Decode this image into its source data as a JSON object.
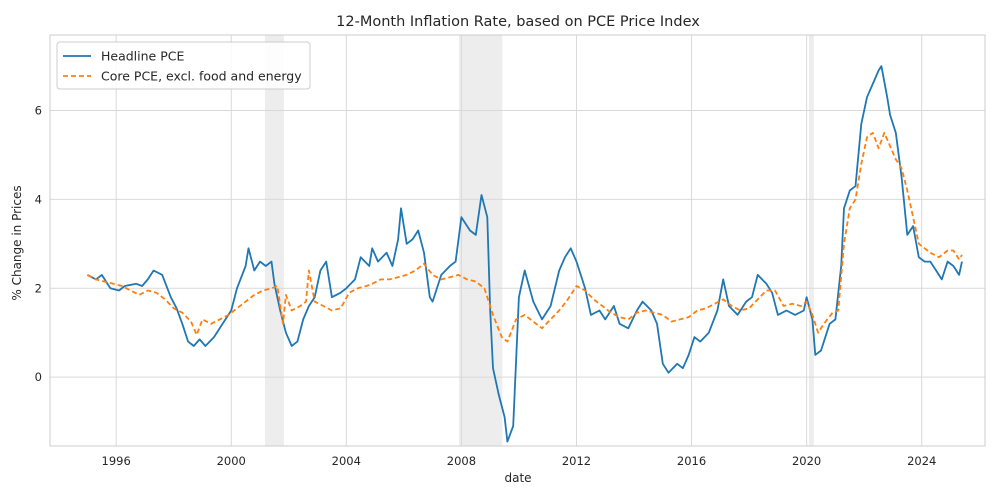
{
  "chart_data": {
    "type": "line",
    "title": "12-Month Inflation Rate, based on PCE Price Index",
    "xlabel": "date",
    "ylabel": "% Change in Prices",
    "xlim": [
      1993.7,
      2026.2
    ],
    "ylim": [
      -1.55,
      7.7
    ],
    "x_ticks": [
      1996,
      2000,
      2004,
      2008,
      2012,
      2016,
      2020,
      2024
    ],
    "y_ticks": [
      0,
      2,
      4,
      6
    ],
    "grid": true,
    "legend_position": "top-left",
    "recessions": [
      [
        2001.17,
        2001.83
      ],
      [
        2007.92,
        2009.42
      ],
      [
        2020.08,
        2020.25
      ]
    ],
    "series": [
      {
        "name": "Headline PCE",
        "color": "#1f77b4",
        "style": "solid",
        "points": [
          [
            1995.0,
            2.3
          ],
          [
            1995.3,
            2.2
          ],
          [
            1995.5,
            2.3
          ],
          [
            1995.8,
            2.0
          ],
          [
            1996.1,
            1.95
          ],
          [
            1996.3,
            2.05
          ],
          [
            1996.7,
            2.1
          ],
          [
            1996.9,
            2.05
          ],
          [
            1997.1,
            2.2
          ],
          [
            1997.3,
            2.4
          ],
          [
            1997.6,
            2.3
          ],
          [
            1997.9,
            1.8
          ],
          [
            1998.1,
            1.55
          ],
          [
            1998.3,
            1.2
          ],
          [
            1998.5,
            0.8
          ],
          [
            1998.7,
            0.7
          ],
          [
            1998.9,
            0.85
          ],
          [
            1999.1,
            0.7
          ],
          [
            1999.4,
            0.9
          ],
          [
            1999.7,
            1.2
          ],
          [
            2000.0,
            1.5
          ],
          [
            2000.2,
            2.0
          ],
          [
            2000.5,
            2.5
          ],
          [
            2000.6,
            2.9
          ],
          [
            2000.8,
            2.4
          ],
          [
            2001.0,
            2.6
          ],
          [
            2001.2,
            2.5
          ],
          [
            2001.4,
            2.6
          ],
          [
            2001.5,
            2.1
          ],
          [
            2001.7,
            1.5
          ],
          [
            2001.9,
            1.0
          ],
          [
            2002.1,
            0.7
          ],
          [
            2002.3,
            0.8
          ],
          [
            2002.5,
            1.3
          ],
          [
            2002.7,
            1.6
          ],
          [
            2002.9,
            1.8
          ],
          [
            2003.1,
            2.4
          ],
          [
            2003.3,
            2.6
          ],
          [
            2003.5,
            1.8
          ],
          [
            2003.8,
            1.9
          ],
          [
            2004.0,
            2.0
          ],
          [
            2004.3,
            2.2
          ],
          [
            2004.5,
            2.7
          ],
          [
            2004.8,
            2.5
          ],
          [
            2004.9,
            2.9
          ],
          [
            2005.1,
            2.6
          ],
          [
            2005.4,
            2.8
          ],
          [
            2005.6,
            2.5
          ],
          [
            2005.8,
            3.1
          ],
          [
            2005.9,
            3.8
          ],
          [
            2006.1,
            3.0
          ],
          [
            2006.3,
            3.1
          ],
          [
            2006.5,
            3.3
          ],
          [
            2006.7,
            2.8
          ],
          [
            2006.9,
            1.8
          ],
          [
            2007.0,
            1.7
          ],
          [
            2007.3,
            2.3
          ],
          [
            2007.6,
            2.5
          ],
          [
            2007.8,
            2.6
          ],
          [
            2008.0,
            3.6
          ],
          [
            2008.3,
            3.3
          ],
          [
            2008.5,
            3.2
          ],
          [
            2008.7,
            4.1
          ],
          [
            2008.9,
            3.6
          ],
          [
            2009.0,
            1.5
          ],
          [
            2009.1,
            0.2
          ],
          [
            2009.3,
            -0.4
          ],
          [
            2009.5,
            -0.9
          ],
          [
            2009.6,
            -1.45
          ],
          [
            2009.8,
            -1.1
          ],
          [
            2010.0,
            1.8
          ],
          [
            2010.2,
            2.4
          ],
          [
            2010.5,
            1.7
          ],
          [
            2010.8,
            1.3
          ],
          [
            2011.1,
            1.6
          ],
          [
            2011.4,
            2.4
          ],
          [
            2011.6,
            2.7
          ],
          [
            2011.8,
            2.9
          ],
          [
            2012.0,
            2.6
          ],
          [
            2012.3,
            2.0
          ],
          [
            2012.5,
            1.4
          ],
          [
            2012.8,
            1.5
          ],
          [
            2013.0,
            1.3
          ],
          [
            2013.3,
            1.6
          ],
          [
            2013.5,
            1.2
          ],
          [
            2013.8,
            1.1
          ],
          [
            2014.1,
            1.5
          ],
          [
            2014.3,
            1.7
          ],
          [
            2014.6,
            1.5
          ],
          [
            2014.8,
            1.2
          ],
          [
            2015.0,
            0.3
          ],
          [
            2015.2,
            0.1
          ],
          [
            2015.5,
            0.3
          ],
          [
            2015.7,
            0.2
          ],
          [
            2015.9,
            0.5
          ],
          [
            2016.1,
            0.9
          ],
          [
            2016.3,
            0.8
          ],
          [
            2016.6,
            1.0
          ],
          [
            2016.9,
            1.5
          ],
          [
            2017.1,
            2.2
          ],
          [
            2017.3,
            1.6
          ],
          [
            2017.6,
            1.4
          ],
          [
            2017.9,
            1.7
          ],
          [
            2018.1,
            1.8
          ],
          [
            2018.3,
            2.3
          ],
          [
            2018.6,
            2.1
          ],
          [
            2018.8,
            1.9
          ],
          [
            2019.0,
            1.4
          ],
          [
            2019.3,
            1.5
          ],
          [
            2019.6,
            1.4
          ],
          [
            2019.9,
            1.5
          ],
          [
            2020.0,
            1.8
          ],
          [
            2020.2,
            1.3
          ],
          [
            2020.3,
            0.5
          ],
          [
            2020.5,
            0.6
          ],
          [
            2020.8,
            1.2
          ],
          [
            2021.0,
            1.3
          ],
          [
            2021.2,
            2.5
          ],
          [
            2021.3,
            3.8
          ],
          [
            2021.5,
            4.2
          ],
          [
            2021.7,
            4.3
          ],
          [
            2021.9,
            5.7
          ],
          [
            2022.1,
            6.3
          ],
          [
            2022.3,
            6.6
          ],
          [
            2022.5,
            6.9
          ],
          [
            2022.6,
            7.0
          ],
          [
            2022.8,
            6.3
          ],
          [
            2022.9,
            5.9
          ],
          [
            2023.1,
            5.5
          ],
          [
            2023.3,
            4.5
          ],
          [
            2023.5,
            3.2
          ],
          [
            2023.7,
            3.4
          ],
          [
            2023.9,
            2.7
          ],
          [
            2024.1,
            2.6
          ],
          [
            2024.3,
            2.6
          ],
          [
            2024.5,
            2.4
          ],
          [
            2024.7,
            2.2
          ],
          [
            2024.9,
            2.6
          ],
          [
            2025.1,
            2.5
          ],
          [
            2025.3,
            2.3
          ],
          [
            2025.4,
            2.6
          ]
        ]
      },
      {
        "name": "Core PCE, excl. food and energy",
        "color": "#ff7f0e",
        "style": "dashed",
        "points": [
          [
            1995.0,
            2.3
          ],
          [
            1995.3,
            2.2
          ],
          [
            1995.6,
            2.15
          ],
          [
            1995.9,
            2.1
          ],
          [
            1996.2,
            2.05
          ],
          [
            1996.5,
            1.95
          ],
          [
            1996.8,
            1.85
          ],
          [
            1997.1,
            1.95
          ],
          [
            1997.4,
            1.9
          ],
          [
            1997.7,
            1.75
          ],
          [
            1998.0,
            1.55
          ],
          [
            1998.3,
            1.45
          ],
          [
            1998.6,
            1.25
          ],
          [
            1998.8,
            0.95
          ],
          [
            1999.0,
            1.3
          ],
          [
            1999.3,
            1.2
          ],
          [
            1999.6,
            1.3
          ],
          [
            1999.9,
            1.4
          ],
          [
            2000.2,
            1.55
          ],
          [
            2000.5,
            1.7
          ],
          [
            2000.8,
            1.85
          ],
          [
            2001.1,
            1.95
          ],
          [
            2001.4,
            2.0
          ],
          [
            2001.6,
            2.05
          ],
          [
            2001.8,
            1.2
          ],
          [
            2001.9,
            1.85
          ],
          [
            2002.1,
            1.5
          ],
          [
            2002.4,
            1.6
          ],
          [
            2002.6,
            1.7
          ],
          [
            2002.7,
            2.4
          ],
          [
            2002.9,
            1.7
          ],
          [
            2003.2,
            1.6
          ],
          [
            2003.5,
            1.5
          ],
          [
            2003.8,
            1.55
          ],
          [
            2004.1,
            1.9
          ],
          [
            2004.4,
            2.0
          ],
          [
            2004.7,
            2.05
          ],
          [
            2004.9,
            2.1
          ],
          [
            2005.2,
            2.2
          ],
          [
            2005.5,
            2.2
          ],
          [
            2005.8,
            2.25
          ],
          [
            2006.1,
            2.3
          ],
          [
            2006.4,
            2.4
          ],
          [
            2006.7,
            2.55
          ],
          [
            2007.0,
            2.3
          ],
          [
            2007.3,
            2.2
          ],
          [
            2007.6,
            2.25
          ],
          [
            2007.9,
            2.3
          ],
          [
            2008.2,
            2.2
          ],
          [
            2008.5,
            2.15
          ],
          [
            2008.8,
            2.0
          ],
          [
            2009.1,
            1.4
          ],
          [
            2009.4,
            0.9
          ],
          [
            2009.6,
            0.8
          ],
          [
            2009.9,
            1.3
          ],
          [
            2010.2,
            1.4
          ],
          [
            2010.5,
            1.25
          ],
          [
            2010.8,
            1.1
          ],
          [
            2011.1,
            1.3
          ],
          [
            2011.4,
            1.5
          ],
          [
            2011.7,
            1.75
          ],
          [
            2012.0,
            2.05
          ],
          [
            2012.3,
            1.95
          ],
          [
            2012.6,
            1.75
          ],
          [
            2012.9,
            1.6
          ],
          [
            2013.2,
            1.45
          ],
          [
            2013.5,
            1.35
          ],
          [
            2013.8,
            1.3
          ],
          [
            2014.1,
            1.45
          ],
          [
            2014.4,
            1.5
          ],
          [
            2014.7,
            1.45
          ],
          [
            2015.0,
            1.4
          ],
          [
            2015.3,
            1.25
          ],
          [
            2015.6,
            1.3
          ],
          [
            2015.9,
            1.35
          ],
          [
            2016.2,
            1.5
          ],
          [
            2016.5,
            1.55
          ],
          [
            2016.8,
            1.65
          ],
          [
            2017.1,
            1.75
          ],
          [
            2017.4,
            1.6
          ],
          [
            2017.7,
            1.5
          ],
          [
            2018.0,
            1.55
          ],
          [
            2018.3,
            1.75
          ],
          [
            2018.6,
            1.95
          ],
          [
            2018.9,
            1.95
          ],
          [
            2019.2,
            1.6
          ],
          [
            2019.5,
            1.65
          ],
          [
            2019.8,
            1.6
          ],
          [
            2020.0,
            1.7
          ],
          [
            2020.2,
            1.4
          ],
          [
            2020.4,
            1.0
          ],
          [
            2020.6,
            1.2
          ],
          [
            2020.9,
            1.45
          ],
          [
            2021.1,
            1.5
          ],
          [
            2021.3,
            3.0
          ],
          [
            2021.5,
            3.8
          ],
          [
            2021.7,
            4.0
          ],
          [
            2021.9,
            4.8
          ],
          [
            2022.1,
            5.4
          ],
          [
            2022.3,
            5.5
          ],
          [
            2022.5,
            5.15
          ],
          [
            2022.7,
            5.5
          ],
          [
            2022.9,
            5.2
          ],
          [
            2023.1,
            4.9
          ],
          [
            2023.3,
            4.7
          ],
          [
            2023.5,
            4.2
          ],
          [
            2023.7,
            3.6
          ],
          [
            2023.9,
            3.0
          ],
          [
            2024.1,
            2.9
          ],
          [
            2024.3,
            2.8
          ],
          [
            2024.6,
            2.7
          ],
          [
            2024.9,
            2.85
          ],
          [
            2025.1,
            2.85
          ],
          [
            2025.3,
            2.65
          ],
          [
            2025.4,
            2.75
          ]
        ]
      }
    ]
  }
}
